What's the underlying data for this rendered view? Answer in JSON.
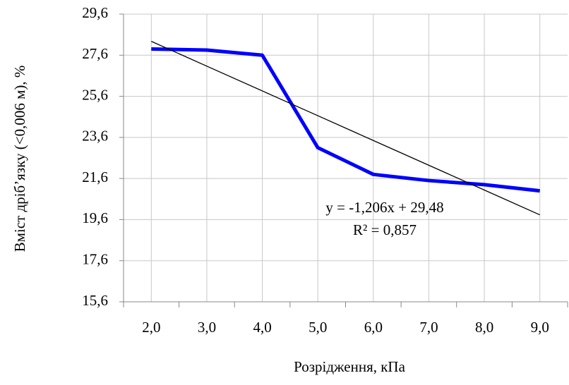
{
  "chart_data": {
    "type": "line",
    "x_label": "Розрідження, кПа",
    "y_label": "Вміст дріб’язку (<0,006 м), %",
    "categories": [
      "2,0",
      "3,0",
      "4,0",
      "5,0",
      "6,0",
      "7,0",
      "8,0",
      "9,0"
    ],
    "series": [
      {
        "color": "#0000ff",
        "values": [
          27.9,
          27.85,
          27.6,
          23.1,
          21.8,
          21.5,
          21.3,
          21.0
        ]
      },
      {
        "color": "#000000",
        "values": [
          28.274,
          27.068,
          25.862,
          24.656,
          23.45,
          22.244,
          21.038,
          19.832
        ]
      }
    ],
    "annotations": [
      "y = -1,206x + 29,48",
      "R² = 0,857"
    ],
    "ylim": [
      15.6,
      29.6
    ],
    "yticks": [
      {
        "value": 15.6,
        "label": "15,6"
      },
      {
        "value": 17.6,
        "label": "17,6"
      },
      {
        "value": 19.6,
        "label": "19,6"
      },
      {
        "value": 21.6,
        "label": "21,6"
      },
      {
        "value": 23.6,
        "label": "23,6"
      },
      {
        "value": 25.6,
        "label": "25,6"
      },
      {
        "value": 27.6,
        "label": "27,6"
      },
      {
        "value": 29.6,
        "label": "29,6"
      }
    ],
    "grid": true
  }
}
